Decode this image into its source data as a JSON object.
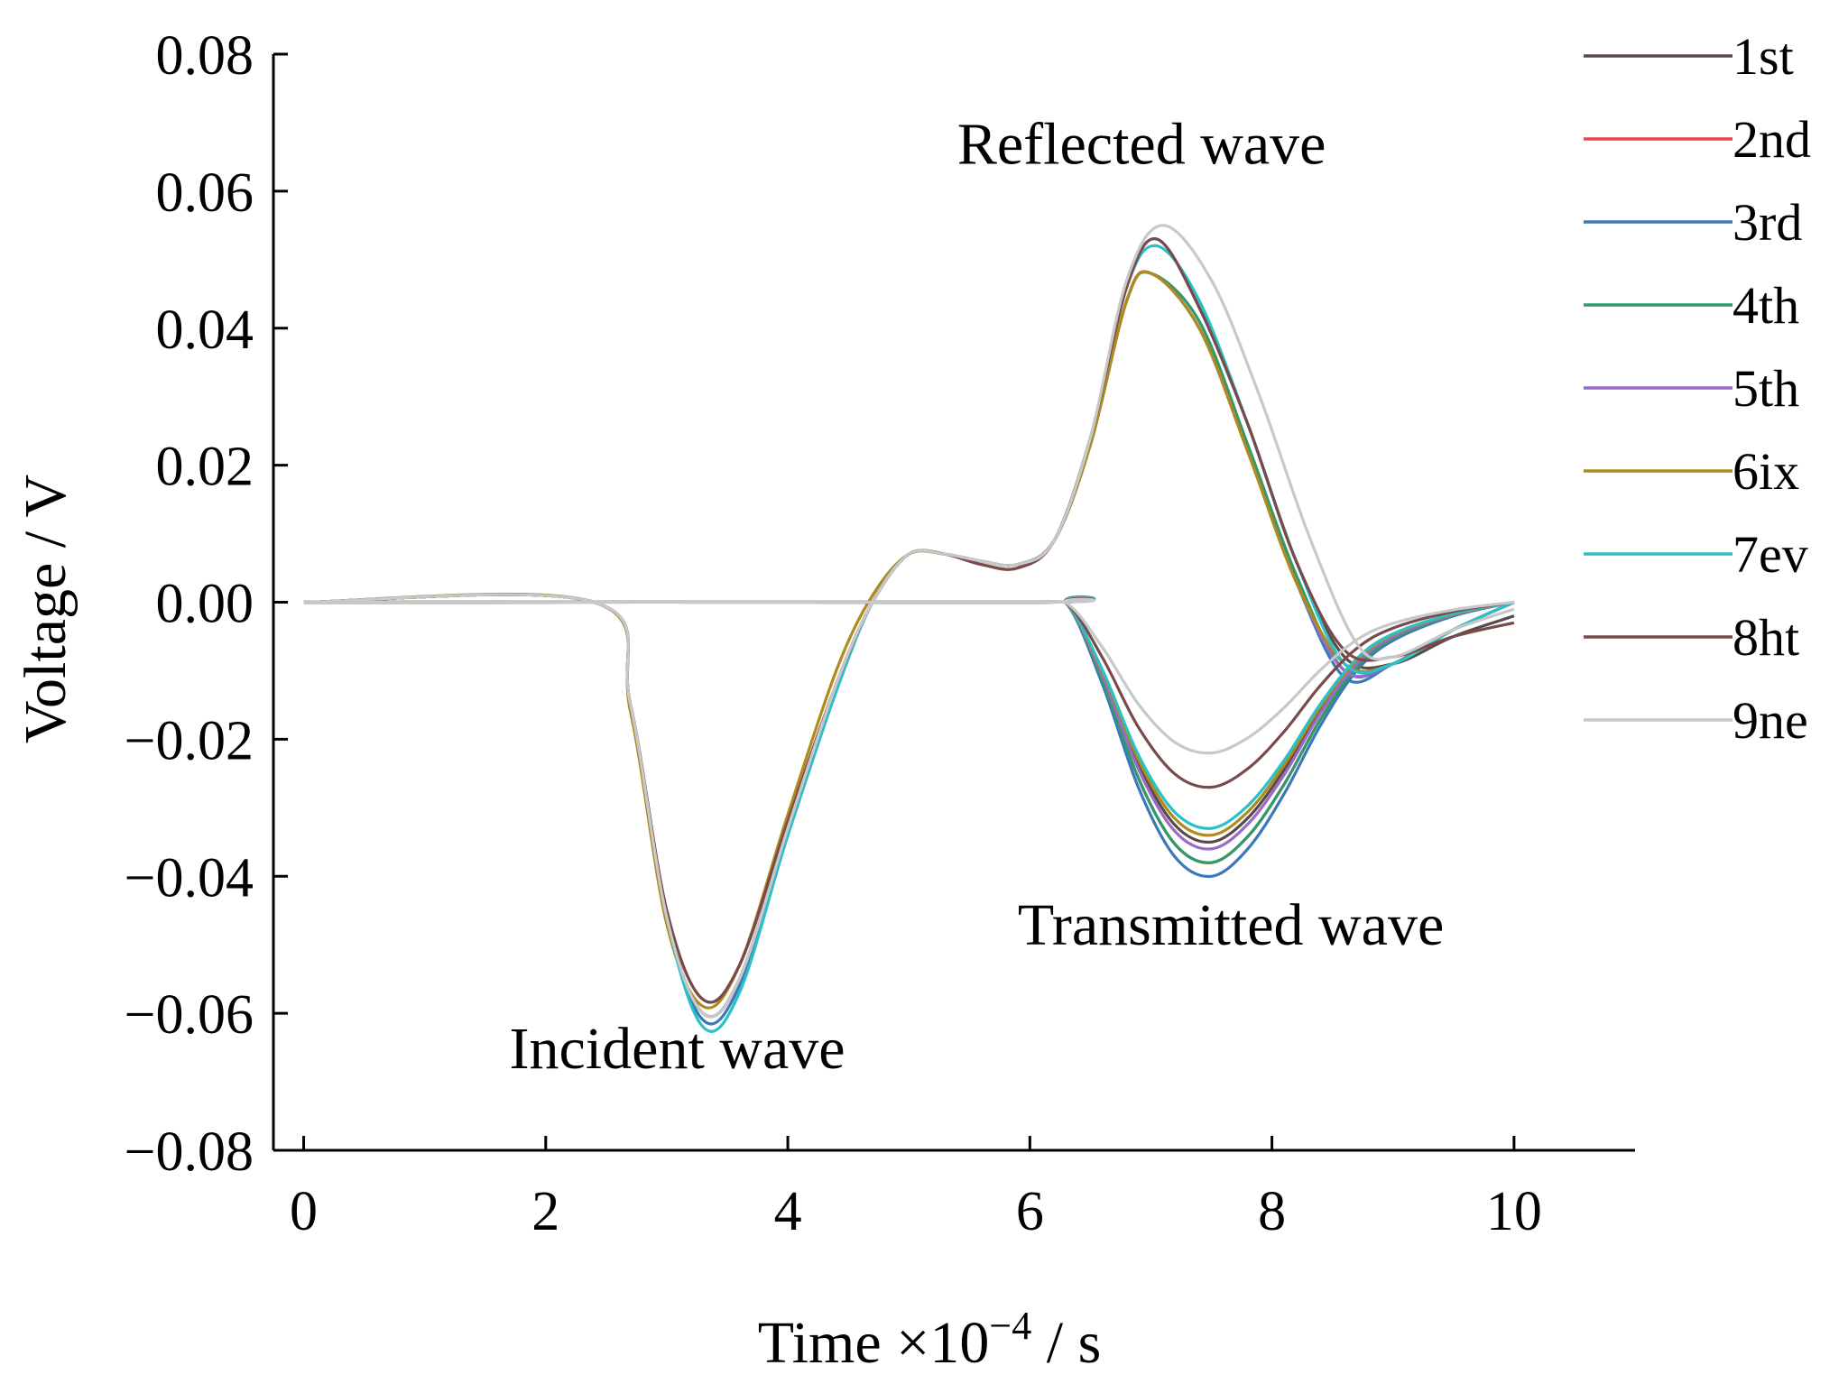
{
  "chart_data": {
    "type": "line",
    "title": "",
    "xlabel_main": "Time ×10",
    "xlabel_exp": "−4",
    "xlabel_unit": " / s",
    "ylabel": "Voltage / V",
    "xlim": [
      -0.25,
      11
    ],
    "ylim": [
      -0.08,
      0.08
    ],
    "x_ticks": [
      0,
      2,
      4,
      6,
      8,
      10
    ],
    "x_tick_labels": [
      "0",
      "2",
      "4",
      "6",
      "8",
      "10"
    ],
    "y_ticks": [
      0.08,
      0.06,
      0.04,
      0.02,
      0.0,
      -0.02,
      -0.04,
      -0.06,
      -0.08
    ],
    "y_tick_labels": [
      "0.08",
      "0.06",
      "0.04",
      "0.02",
      "0.00",
      "−0.02",
      "−0.04",
      "−0.06",
      "−0.08"
    ],
    "grid": false,
    "legend_position": "top-right",
    "annotations": [
      {
        "text": "Reflected wave",
        "x": 5.4,
        "y": 0.064
      },
      {
        "text": "Transmitted wave",
        "x": 5.9,
        "y": -0.05
      },
      {
        "text": "Incident wave",
        "x": 1.7,
        "y": -0.068
      }
    ],
    "series": [
      {
        "name": "1st",
        "color": "#5a4a4a",
        "min_incident": -0.0585,
        "peak_reflected": 0.053,
        "min_transmitted": -0.035,
        "x": [
          0,
          2.4,
          2.7,
          3.0,
          3.3,
          3.6,
          4.0,
          4.4,
          4.7,
          5.0,
          5.3,
          5.6,
          5.9,
          6.2,
          6.5,
          6.8,
          7.05,
          7.4,
          7.8,
          8.2,
          8.6,
          9.0,
          9.5,
          10.0
        ],
        "y": [
          0,
          0,
          -0.015,
          -0.045,
          -0.058,
          -0.053,
          -0.032,
          -0.012,
          0,
          0.007,
          0.007,
          0.0055,
          0.005,
          0.009,
          0.024,
          0.046,
          0.053,
          0.043,
          0.026,
          0.006,
          -0.008,
          -0.009,
          -0.005,
          -0.002
        ]
      },
      {
        "name": "2nd",
        "color": "#e8474a",
        "min_incident": -0.06,
        "peak_reflected": 0.048,
        "min_transmitted": -0.038,
        "x": [
          0,
          2.4,
          2.7,
          3.0,
          3.3,
          3.6,
          4.0,
          4.4,
          4.7,
          5.0,
          5.3,
          5.6,
          5.9,
          6.2,
          6.5,
          6.8,
          7.0,
          7.4,
          7.8,
          8.2,
          8.6,
          9.0,
          9.5,
          10.0
        ],
        "y": [
          0,
          0,
          -0.015,
          -0.046,
          -0.06,
          -0.055,
          -0.033,
          -0.012,
          0,
          0.007,
          0.007,
          0.006,
          0.0055,
          0.009,
          0.023,
          0.044,
          0.048,
          0.04,
          0.022,
          0.003,
          -0.01,
          -0.009,
          -0.004,
          0
        ]
      },
      {
        "name": "3rd",
        "color": "#3a78b8",
        "min_incident": -0.061,
        "peak_reflected": 0.048,
        "min_transmitted": -0.04,
        "x": [
          0,
          2.4,
          2.7,
          3.0,
          3.3,
          3.6,
          4.0,
          4.4,
          4.7,
          5.0,
          5.3,
          5.6,
          5.9,
          6.2,
          6.5,
          6.8,
          7.0,
          7.4,
          7.8,
          8.2,
          8.6,
          9.0,
          9.5,
          10.0
        ],
        "y": [
          0,
          0,
          -0.015,
          -0.046,
          -0.061,
          -0.056,
          -0.034,
          -0.013,
          0,
          0.007,
          0.007,
          0.006,
          0.0055,
          0.009,
          0.023,
          0.044,
          0.048,
          0.04,
          0.022,
          0.003,
          -0.011,
          -0.009,
          -0.004,
          0
        ]
      },
      {
        "name": "4th",
        "color": "#2f9a6a",
        "min_incident": -0.06,
        "peak_reflected": 0.048,
        "min_transmitted": -0.038,
        "x": [
          0,
          2.4,
          2.7,
          3.0,
          3.3,
          3.6,
          4.0,
          4.4,
          4.7,
          5.0,
          5.3,
          5.6,
          5.9,
          6.2,
          6.5,
          6.8,
          7.0,
          7.4,
          7.8,
          8.2,
          8.6,
          9.0,
          9.5,
          10.0
        ],
        "y": [
          0,
          0,
          -0.015,
          -0.046,
          -0.06,
          -0.055,
          -0.033,
          -0.012,
          0,
          0.007,
          0.007,
          0.006,
          0.0055,
          0.009,
          0.023,
          0.044,
          0.048,
          0.041,
          0.023,
          0.004,
          -0.01,
          -0.009,
          -0.004,
          0
        ]
      },
      {
        "name": "5th",
        "color": "#9a6ac8",
        "min_incident": -0.06,
        "peak_reflected": 0.048,
        "min_transmitted": -0.036,
        "x": [
          0,
          2.4,
          2.7,
          3.0,
          3.3,
          3.6,
          4.0,
          4.4,
          4.7,
          5.0,
          5.3,
          5.6,
          5.9,
          6.2,
          6.5,
          6.8,
          7.0,
          7.4,
          7.8,
          8.2,
          8.6,
          9.0,
          9.5,
          10.0
        ],
        "y": [
          0,
          0,
          -0.015,
          -0.046,
          -0.06,
          -0.055,
          -0.033,
          -0.012,
          0,
          0.007,
          0.007,
          0.006,
          0.0055,
          0.009,
          0.023,
          0.044,
          0.048,
          0.04,
          0.022,
          0.003,
          -0.01,
          -0.009,
          -0.004,
          0
        ]
      },
      {
        "name": "6ix",
        "color": "#b08a1a",
        "min_incident": -0.059,
        "peak_reflected": 0.048,
        "min_transmitted": -0.034,
        "x": [
          0,
          2.4,
          2.7,
          3.0,
          3.3,
          3.6,
          4.0,
          4.4,
          4.7,
          5.0,
          5.3,
          5.6,
          5.9,
          6.2,
          6.5,
          6.8,
          7.0,
          7.4,
          7.8,
          8.2,
          8.6,
          9.0,
          9.5,
          10.0
        ],
        "y": [
          0,
          0,
          -0.016,
          -0.047,
          -0.059,
          -0.053,
          -0.031,
          -0.01,
          0.001,
          0.007,
          0.007,
          0.006,
          0.0055,
          0.009,
          0.023,
          0.044,
          0.048,
          0.04,
          0.022,
          0.003,
          -0.009,
          -0.009,
          -0.004,
          0
        ]
      },
      {
        "name": "7ev",
        "color": "#29c0c8",
        "min_incident": -0.062,
        "peak_reflected": 0.052,
        "min_transmitted": -0.033,
        "x": [
          0,
          2.4,
          2.7,
          3.0,
          3.3,
          3.6,
          4.0,
          4.4,
          4.7,
          5.0,
          5.3,
          5.6,
          5.9,
          6.2,
          6.5,
          6.8,
          7.05,
          7.4,
          7.8,
          8.2,
          8.6,
          9.0,
          9.5,
          10.0
        ],
        "y": [
          0,
          0,
          -0.015,
          -0.046,
          -0.062,
          -0.057,
          -0.034,
          -0.013,
          0,
          0.007,
          0.007,
          0.006,
          0.0055,
          0.009,
          0.024,
          0.046,
          0.052,
          0.044,
          0.026,
          0.006,
          -0.009,
          -0.009,
          -0.004,
          0
        ]
      },
      {
        "name": "8ht",
        "color": "#7a4a4a",
        "min_incident": -0.058,
        "peak_reflected": 0.053,
        "min_transmitted": -0.027,
        "x": [
          0,
          2.4,
          2.7,
          3.0,
          3.3,
          3.6,
          4.0,
          4.4,
          4.7,
          5.0,
          5.3,
          5.6,
          5.9,
          6.2,
          6.5,
          6.8,
          7.05,
          7.4,
          7.8,
          8.2,
          8.6,
          9.0,
          9.5,
          10.0
        ],
        "y": [
          0,
          0,
          -0.015,
          -0.045,
          -0.058,
          -0.053,
          -0.032,
          -0.012,
          0,
          0.007,
          0.007,
          0.0055,
          0.005,
          0.009,
          0.024,
          0.046,
          0.053,
          0.043,
          0.026,
          0.006,
          -0.007,
          -0.008,
          -0.005,
          -0.003
        ]
      },
      {
        "name": "9ne",
        "color": "#c8c8c8",
        "min_incident": -0.06,
        "peak_reflected": 0.055,
        "min_transmitted": -0.022,
        "x": [
          0,
          2.4,
          2.7,
          3.0,
          3.3,
          3.6,
          4.0,
          4.4,
          4.7,
          5.0,
          5.3,
          5.6,
          5.9,
          6.2,
          6.5,
          6.8,
          7.1,
          7.5,
          7.9,
          8.3,
          8.7,
          9.0,
          9.5,
          10.0
        ],
        "y": [
          0,
          0,
          -0.015,
          -0.046,
          -0.06,
          -0.055,
          -0.033,
          -0.012,
          0,
          0.007,
          0.007,
          0.006,
          0.0055,
          0.009,
          0.024,
          0.047,
          0.055,
          0.047,
          0.03,
          0.01,
          -0.006,
          -0.008,
          -0.004,
          -0.001
        ]
      }
    ]
  }
}
